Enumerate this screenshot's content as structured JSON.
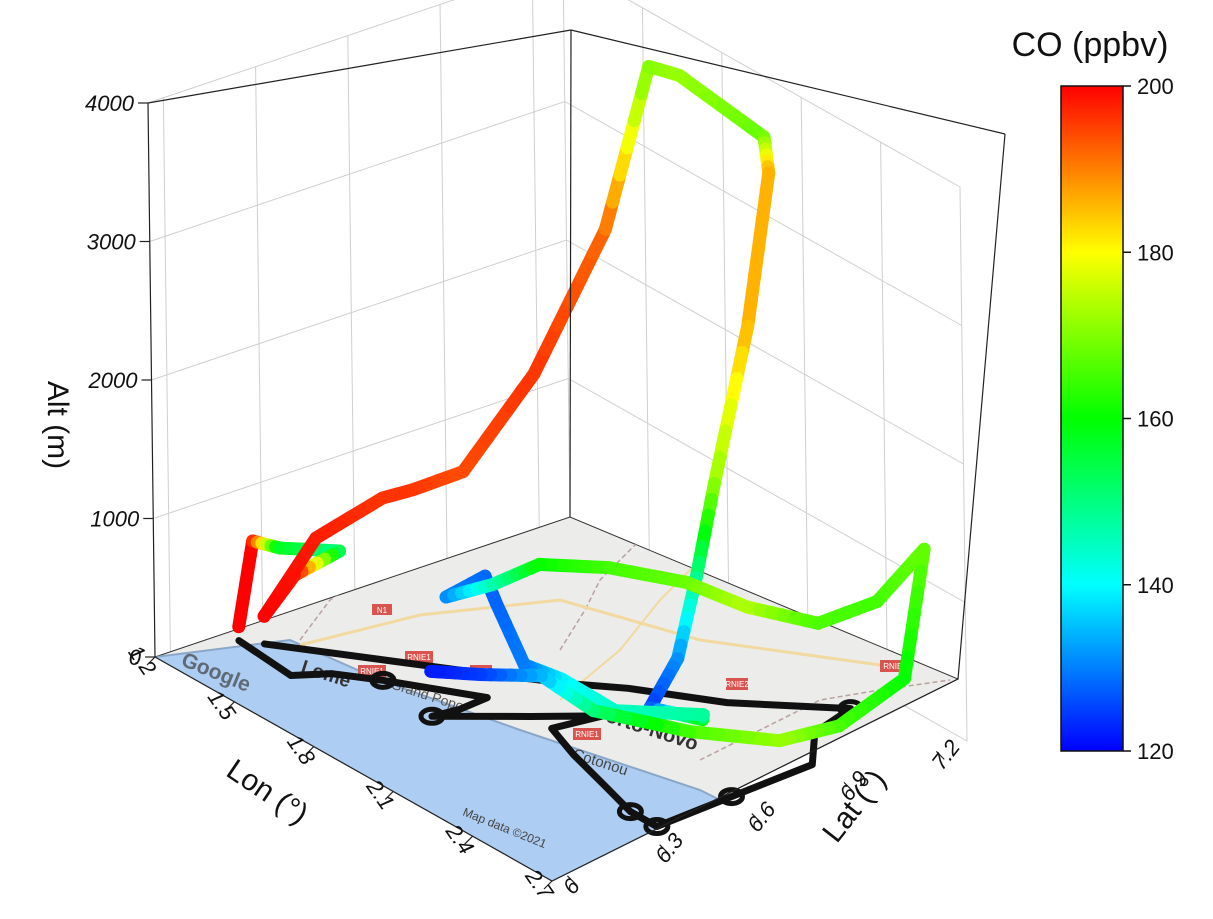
{
  "chart_data": {
    "type": "scatter",
    "projection": "3d",
    "title": "",
    "axes": {
      "x": {
        "label": "Lon (°)",
        "ticks": [
          "1.2",
          "1.5",
          "1.8",
          "2.1",
          "2.4",
          "2.7"
        ],
        "range": [
          1.2,
          2.7
        ]
      },
      "y": {
        "label": "Lat (°)",
        "ticks": [
          "6",
          "6.3",
          "6.6",
          "6.9",
          "7.2"
        ],
        "range": [
          5.95,
          7.3
        ]
      },
      "z": {
        "label": "Alt (m)",
        "ticks": [
          "0",
          "1000",
          "2000",
          "3000",
          "4000"
        ],
        "range": [
          0,
          4000
        ]
      }
    },
    "colorbar": {
      "label": "CO (ppbv)",
      "ticks": [
        "120",
        "140",
        "160",
        "180",
        "200"
      ],
      "range": [
        120,
        200
      ],
      "colormap": [
        "#0000ff",
        "#00ffff",
        "#00ff00",
        "#ffff00",
        "#ff0000"
      ]
    },
    "basemap": {
      "attribution_left": "Google",
      "attribution_right": "Map data ©2021",
      "place_labels": [
        "Lomé",
        "Grand Popo",
        "Porto-Novo",
        "Cotonou"
      ],
      "road_labels": [
        "N1",
        "RNIE1",
        "RNIE1",
        "RN2",
        "RNIE4",
        "RNIE1",
        "RNIE2"
      ]
    },
    "grid": true,
    "flight_track": [
      {
        "lon": 1.25,
        "lat": 6.18,
        "alt": 100,
        "co": 200
      },
      {
        "lon": 1.26,
        "lat": 6.22,
        "alt": 700,
        "co": 200
      },
      {
        "lon": 1.27,
        "lat": 6.3,
        "alt": 600,
        "co": 158
      },
      {
        "lon": 1.32,
        "lat": 6.45,
        "alt": 520,
        "co": 150
      },
      {
        "lon": 1.3,
        "lat": 6.32,
        "alt": 420,
        "co": 198
      },
      {
        "lon": 1.3,
        "lat": 6.22,
        "alt": 200,
        "co": 200
      },
      {
        "lon": 1.29,
        "lat": 6.4,
        "alt": 620,
        "co": 198
      },
      {
        "lon": 1.31,
        "lat": 6.6,
        "alt": 780,
        "co": 196
      },
      {
        "lon": 1.33,
        "lat": 6.68,
        "alt": 800,
        "co": 196
      },
      {
        "lon": 1.5,
        "lat": 6.7,
        "alt": 1100,
        "co": 194
      },
      {
        "lon": 1.54,
        "lat": 6.9,
        "alt": 1700,
        "co": 196
      },
      {
        "lon": 1.56,
        "lat": 7.12,
        "alt": 2600,
        "co": 192
      },
      {
        "lon": 1.58,
        "lat": 7.25,
        "alt": 3700,
        "co": 170
      },
      {
        "lon": 1.66,
        "lat": 7.28,
        "alt": 3700,
        "co": 172
      },
      {
        "lon": 1.98,
        "lat": 7.28,
        "alt": 3600,
        "co": 168
      },
      {
        "lon": 2.02,
        "lat": 7.26,
        "alt": 3400,
        "co": 186
      },
      {
        "lon": 2.05,
        "lat": 7.16,
        "alt": 2400,
        "co": 186
      },
      {
        "lon": 2.08,
        "lat": 7.02,
        "alt": 1400,
        "co": 172
      },
      {
        "lon": 2.1,
        "lat": 6.94,
        "alt": 800,
        "co": 150
      },
      {
        "lon": 2.12,
        "lat": 6.86,
        "alt": 300,
        "co": 132
      },
      {
        "lon": 2.2,
        "lat": 6.7,
        "alt": 150,
        "co": 125
      },
      {
        "lon": 2.4,
        "lat": 6.7,
        "alt": 280,
        "co": 160
      },
      {
        "lon": 2.52,
        "lat": 6.6,
        "alt": 520,
        "co": 148
      },
      {
        "lon": 2.35,
        "lat": 6.46,
        "alt": 470,
        "co": 145
      },
      {
        "lon": 2.1,
        "lat": 6.5,
        "alt": 400,
        "co": 140
      },
      {
        "lon": 1.9,
        "lat": 6.55,
        "alt": 250,
        "co": 130
      },
      {
        "lon": 1.62,
        "lat": 6.7,
        "alt": 280,
        "co": 128
      },
      {
        "lon": 1.52,
        "lat": 6.75,
        "alt": 330,
        "co": 128
      },
      {
        "lon": 1.5,
        "lat": 6.64,
        "alt": 240,
        "co": 130
      },
      {
        "lon": 1.7,
        "lat": 6.62,
        "alt": 560,
        "co": 145
      },
      {
        "lon": 1.88,
        "lat": 6.62,
        "alt": 900,
        "co": 160
      },
      {
        "lon": 2.05,
        "lat": 6.7,
        "alt": 1000,
        "co": 165
      },
      {
        "lon": 2.25,
        "lat": 6.78,
        "alt": 1050,
        "co": 168
      },
      {
        "lon": 2.4,
        "lat": 6.85,
        "alt": 980,
        "co": 174
      },
      {
        "lon": 2.55,
        "lat": 6.95,
        "alt": 950,
        "co": 166
      },
      {
        "lon": 2.6,
        "lat": 7.1,
        "alt": 1050,
        "co": 165
      },
      {
        "lon": 2.64,
        "lat": 7.22,
        "alt": 1380,
        "co": 168
      },
      {
        "lon": 2.7,
        "lat": 7.1,
        "alt": 600,
        "co": 160
      },
      {
        "lon": 2.66,
        "lat": 6.92,
        "alt": 350,
        "co": 165
      },
      {
        "lon": 2.55,
        "lat": 6.82,
        "alt": 200,
        "co": 172
      },
      {
        "lon": 2.35,
        "lat": 6.7,
        "alt": 140,
        "co": 166
      },
      {
        "lon": 2.15,
        "lat": 6.56,
        "alt": 180,
        "co": 152
      },
      {
        "lon": 2.0,
        "lat": 6.52,
        "alt": 300,
        "co": 135
      },
      {
        "lon": 1.85,
        "lat": 6.45,
        "alt": 200,
        "co": 125
      },
      {
        "lon": 1.72,
        "lat": 6.4,
        "alt": 120,
        "co": 122
      }
    ],
    "ground_track": [
      {
        "lon": 1.25,
        "lat": 6.18
      },
      {
        "lon": 1.47,
        "lat": 6.16
      },
      {
        "lon": 1.52,
        "lat": 6.25
      },
      {
        "lon": 1.62,
        "lat": 6.33
      },
      {
        "lon": 1.84,
        "lat": 6.48
      },
      {
        "lon": 1.85,
        "lat": 6.38
      },
      {
        "lon": 1.84,
        "lat": 6.3
      },
      {
        "lon": 1.98,
        "lat": 6.5
      },
      {
        "lon": 2.08,
        "lat": 6.65
      },
      {
        "lon": 2.06,
        "lat": 6.5
      },
      {
        "lon": 2.2,
        "lat": 6.45
      },
      {
        "lon": 2.38,
        "lat": 6.4
      },
      {
        "lon": 2.52,
        "lat": 6.36
      },
      {
        "lon": 2.62,
        "lat": 6.36
      },
      {
        "lon": 2.6,
        "lat": 6.62
      },
      {
        "lon": 2.58,
        "lat": 6.9
      },
      {
        "lon": 2.45,
        "lat": 7.02
      },
      {
        "lon": 2.4,
        "lat": 7.18
      },
      {
        "lon": 2.2,
        "lat": 6.95
      },
      {
        "lon": 2.0,
        "lat": 6.8
      },
      {
        "lon": 1.9,
        "lat": 6.7
      },
      {
        "lon": 1.72,
        "lat": 6.55
      },
      {
        "lon": 1.3,
        "lat": 6.22
      }
    ]
  }
}
